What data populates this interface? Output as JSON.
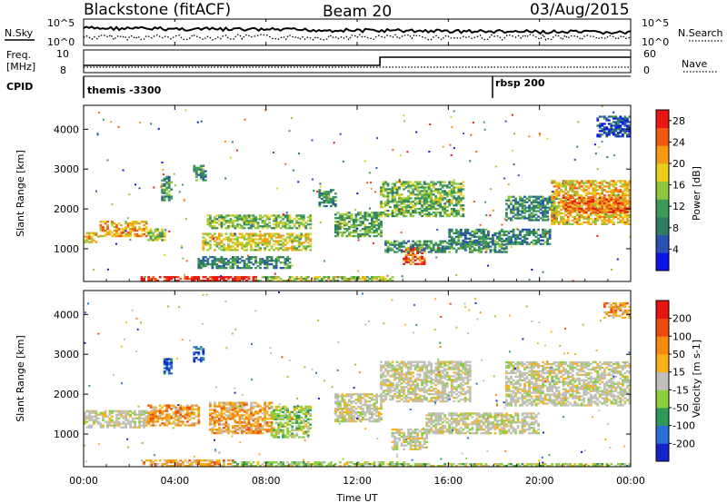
{
  "header": {
    "radar": "Blackstone (fitACF)",
    "beam": "Beam 20",
    "date": "03/Aug/2015"
  },
  "top_panels": {
    "nsky_label": "N.Sky",
    "nsearch_label": "N.Search",
    "noise_ticks": [
      "10^5",
      "10^0"
    ],
    "freq_label_line1": "Freq.",
    "freq_label_line2": "[MHz]",
    "freq_ticks": [
      "10",
      "8"
    ],
    "nave_label": "Nave",
    "nave_ticks": [
      "60",
      "0"
    ],
    "cpid_label": "CPID",
    "cpid_segments": [
      {
        "label": "themis -3300",
        "start_hour": 0
      },
      {
        "label": "rbsp 200",
        "start_hour": 18
      }
    ]
  },
  "chart_data": [
    {
      "type": "heatmap",
      "name": "power",
      "ylabel": "Slant Range [km]",
      "xlabel": "",
      "xlim_hours": [
        0,
        24
      ],
      "ylim_km": [
        180,
        4600
      ],
      "yticks": [
        1000,
        2000,
        3000,
        4000
      ],
      "colorbar": {
        "label": "Power [dB]",
        "ticks": [
          4,
          8,
          12,
          16,
          20,
          24,
          28
        ],
        "range": [
          0,
          30
        ],
        "colors": [
          "#0a14e6",
          "#2a52b0",
          "#2e7d60",
          "#3e9a58",
          "#8cc63c",
          "#e8cf1e",
          "#f49b16",
          "#ef5a10",
          "#e81810"
        ]
      },
      "regions": [
        {
          "t0": 0.0,
          "t1": 0.7,
          "r0": 1150,
          "r1": 1400,
          "level": 0.65
        },
        {
          "t0": 0.7,
          "t1": 2.8,
          "r0": 1300,
          "r1": 1700,
          "level": 0.7
        },
        {
          "t0": 2.8,
          "t1": 3.6,
          "r0": 1200,
          "r1": 1500,
          "level": 0.5
        },
        {
          "t0": 3.4,
          "t1": 3.9,
          "r0": 2200,
          "r1": 2800,
          "level": 0.35
        },
        {
          "t0": 4.8,
          "t1": 5.3,
          "r0": 2700,
          "r1": 3100,
          "level": 0.35
        },
        {
          "t0": 5.2,
          "t1": 9.9,
          "r0": 950,
          "r1": 1400,
          "level": 0.6
        },
        {
          "t0": 5.4,
          "t1": 9.9,
          "r0": 1500,
          "r1": 1850,
          "level": 0.45
        },
        {
          "t0": 5.0,
          "t1": 9.0,
          "r0": 500,
          "r1": 800,
          "level": 0.3
        },
        {
          "t0": 10.3,
          "t1": 11.0,
          "r0": 2050,
          "r1": 2500,
          "level": 0.35
        },
        {
          "t0": 11.0,
          "t1": 13.0,
          "r0": 1300,
          "r1": 1900,
          "level": 0.4
        },
        {
          "t0": 13.0,
          "t1": 16.6,
          "r0": 1800,
          "r1": 2700,
          "level": 0.45
        },
        {
          "t0": 14.0,
          "t1": 14.9,
          "r0": 600,
          "r1": 1050,
          "level": 0.85
        },
        {
          "t0": 13.2,
          "t1": 18.6,
          "r0": 900,
          "r1": 1200,
          "level": 0.35
        },
        {
          "t0": 16.0,
          "t1": 20.5,
          "r0": 1100,
          "r1": 1500,
          "level": 0.3
        },
        {
          "t0": 18.5,
          "t1": 20.8,
          "r0": 1700,
          "r1": 2300,
          "level": 0.3
        },
        {
          "t0": 20.5,
          "t1": 24.0,
          "r0": 1600,
          "r1": 2700,
          "level": 0.65
        },
        {
          "t0": 21.0,
          "t1": 24.0,
          "r0": 1900,
          "r1": 2300,
          "level": 0.82
        },
        {
          "t0": 22.5,
          "t1": 24.0,
          "r0": 3800,
          "r1": 4300,
          "level": 0.2
        },
        {
          "t0": 2.5,
          "t1": 7.5,
          "r0": 180,
          "r1": 300,
          "level": 0.95
        },
        {
          "t0": 7.5,
          "t1": 13.5,
          "r0": 180,
          "r1": 280,
          "level": 0.55
        }
      ]
    },
    {
      "type": "heatmap",
      "name": "velocity",
      "ylabel": "Slant Range [km]",
      "xlabel": "Time UT",
      "xlim_hours": [
        0,
        24
      ],
      "ylim_km": [
        180,
        4600
      ],
      "yticks": [
        1000,
        2000,
        3000,
        4000
      ],
      "xticks": [
        "00:00",
        "04:00",
        "08:00",
        "12:00",
        "16:00",
        "20:00",
        "00:00"
      ],
      "colorbar": {
        "label": "Velocity [m s-1]",
        "ticks": [
          200,
          100,
          50,
          15,
          -15,
          -50,
          -100,
          -200
        ],
        "colors": [
          "#1424c8",
          "#2a6fd6",
          "#2e9a58",
          "#8ad03c",
          "#c0c0b8",
          "#f7b418",
          "#f58a10",
          "#ee4a10",
          "#e41410"
        ]
      },
      "regions": [
        {
          "t0": 0.0,
          "t1": 2.8,
          "r0": 1150,
          "r1": 1600,
          "kind": "gray"
        },
        {
          "t0": 2.8,
          "t1": 5.0,
          "r0": 1200,
          "r1": 1700,
          "kind": "orange"
        },
        {
          "t0": 5.5,
          "t1": 8.2,
          "r0": 1000,
          "r1": 1800,
          "kind": "orange"
        },
        {
          "t0": 8.2,
          "t1": 9.9,
          "r0": 900,
          "r1": 1700,
          "kind": "green"
        },
        {
          "t0": 11.0,
          "t1": 13.0,
          "r0": 1300,
          "r1": 2000,
          "kind": "gray"
        },
        {
          "t0": 13.0,
          "t1": 17.0,
          "r0": 1800,
          "r1": 2800,
          "kind": "gray"
        },
        {
          "t0": 13.5,
          "t1": 15.0,
          "r0": 600,
          "r1": 1100,
          "kind": "gray"
        },
        {
          "t0": 15.0,
          "t1": 20.0,
          "r0": 1000,
          "r1": 1500,
          "kind": "gray"
        },
        {
          "t0": 18.5,
          "t1": 24.0,
          "r0": 1700,
          "r1": 2800,
          "kind": "gray"
        },
        {
          "t0": 4.8,
          "t1": 5.2,
          "r0": 2800,
          "r1": 3200,
          "kind": "blue"
        },
        {
          "t0": 3.5,
          "t1": 3.9,
          "r0": 2500,
          "r1": 2900,
          "kind": "blue"
        },
        {
          "t0": 22.8,
          "t1": 24.0,
          "r0": 3900,
          "r1": 4300,
          "kind": "orange"
        },
        {
          "t0": 2.5,
          "t1": 6.5,
          "r0": 180,
          "r1": 320,
          "kind": "orange"
        },
        {
          "t0": 6.5,
          "t1": 14.0,
          "r0": 180,
          "r1": 300,
          "kind": "green"
        },
        {
          "t0": 14.0,
          "t1": 24.0,
          "r0": 180,
          "r1": 260,
          "kind": "green"
        }
      ]
    }
  ]
}
